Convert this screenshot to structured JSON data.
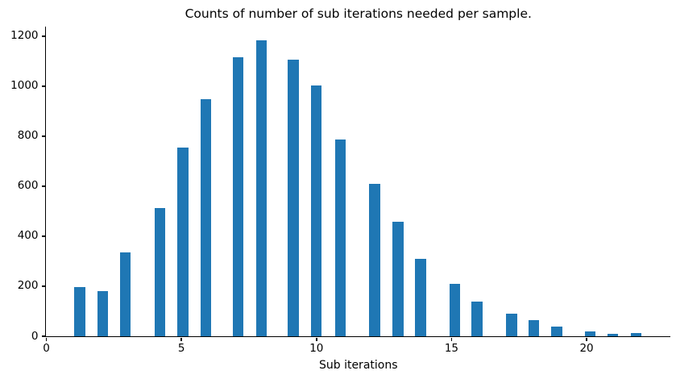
{
  "chart_data": {
    "type": "bar",
    "title": "Counts of number of sub iterations needed per sample.",
    "xlabel": "Sub iterations",
    "ylabel": "",
    "bar_color": "#1f77b4",
    "x": [
      1,
      2,
      3,
      4,
      5,
      6,
      7,
      8,
      9,
      10,
      11,
      12,
      13,
      14,
      15,
      16,
      17,
      18,
      19,
      20,
      21,
      22
    ],
    "counts": [
      197,
      180,
      337,
      512,
      755,
      949,
      1117,
      1185,
      1106,
      1004,
      787,
      608,
      457,
      309,
      209,
      140,
      90,
      65,
      40,
      18,
      10,
      12
    ],
    "bar_centers": [
      1.21,
      2.06,
      2.9,
      4.17,
      5.02,
      5.87,
      7.07,
      7.93,
      9.11,
      9.97,
      10.86,
      12.13,
      12.99,
      13.83,
      15.09,
      15.91,
      17.2,
      18.02,
      18.86,
      20.11,
      20.94,
      21.8
    ],
    "bar_width_units": 0.4,
    "xlim": [
      0,
      23.1
    ],
    "ylim": [
      0,
      1240
    ],
    "xticks": [
      0,
      5,
      10,
      15,
      20
    ],
    "yticks": [
      0,
      200,
      400,
      600,
      800,
      1000,
      1200
    ],
    "grid": false,
    "legend": null,
    "text_color": "#000000",
    "background": "#ffffff"
  }
}
